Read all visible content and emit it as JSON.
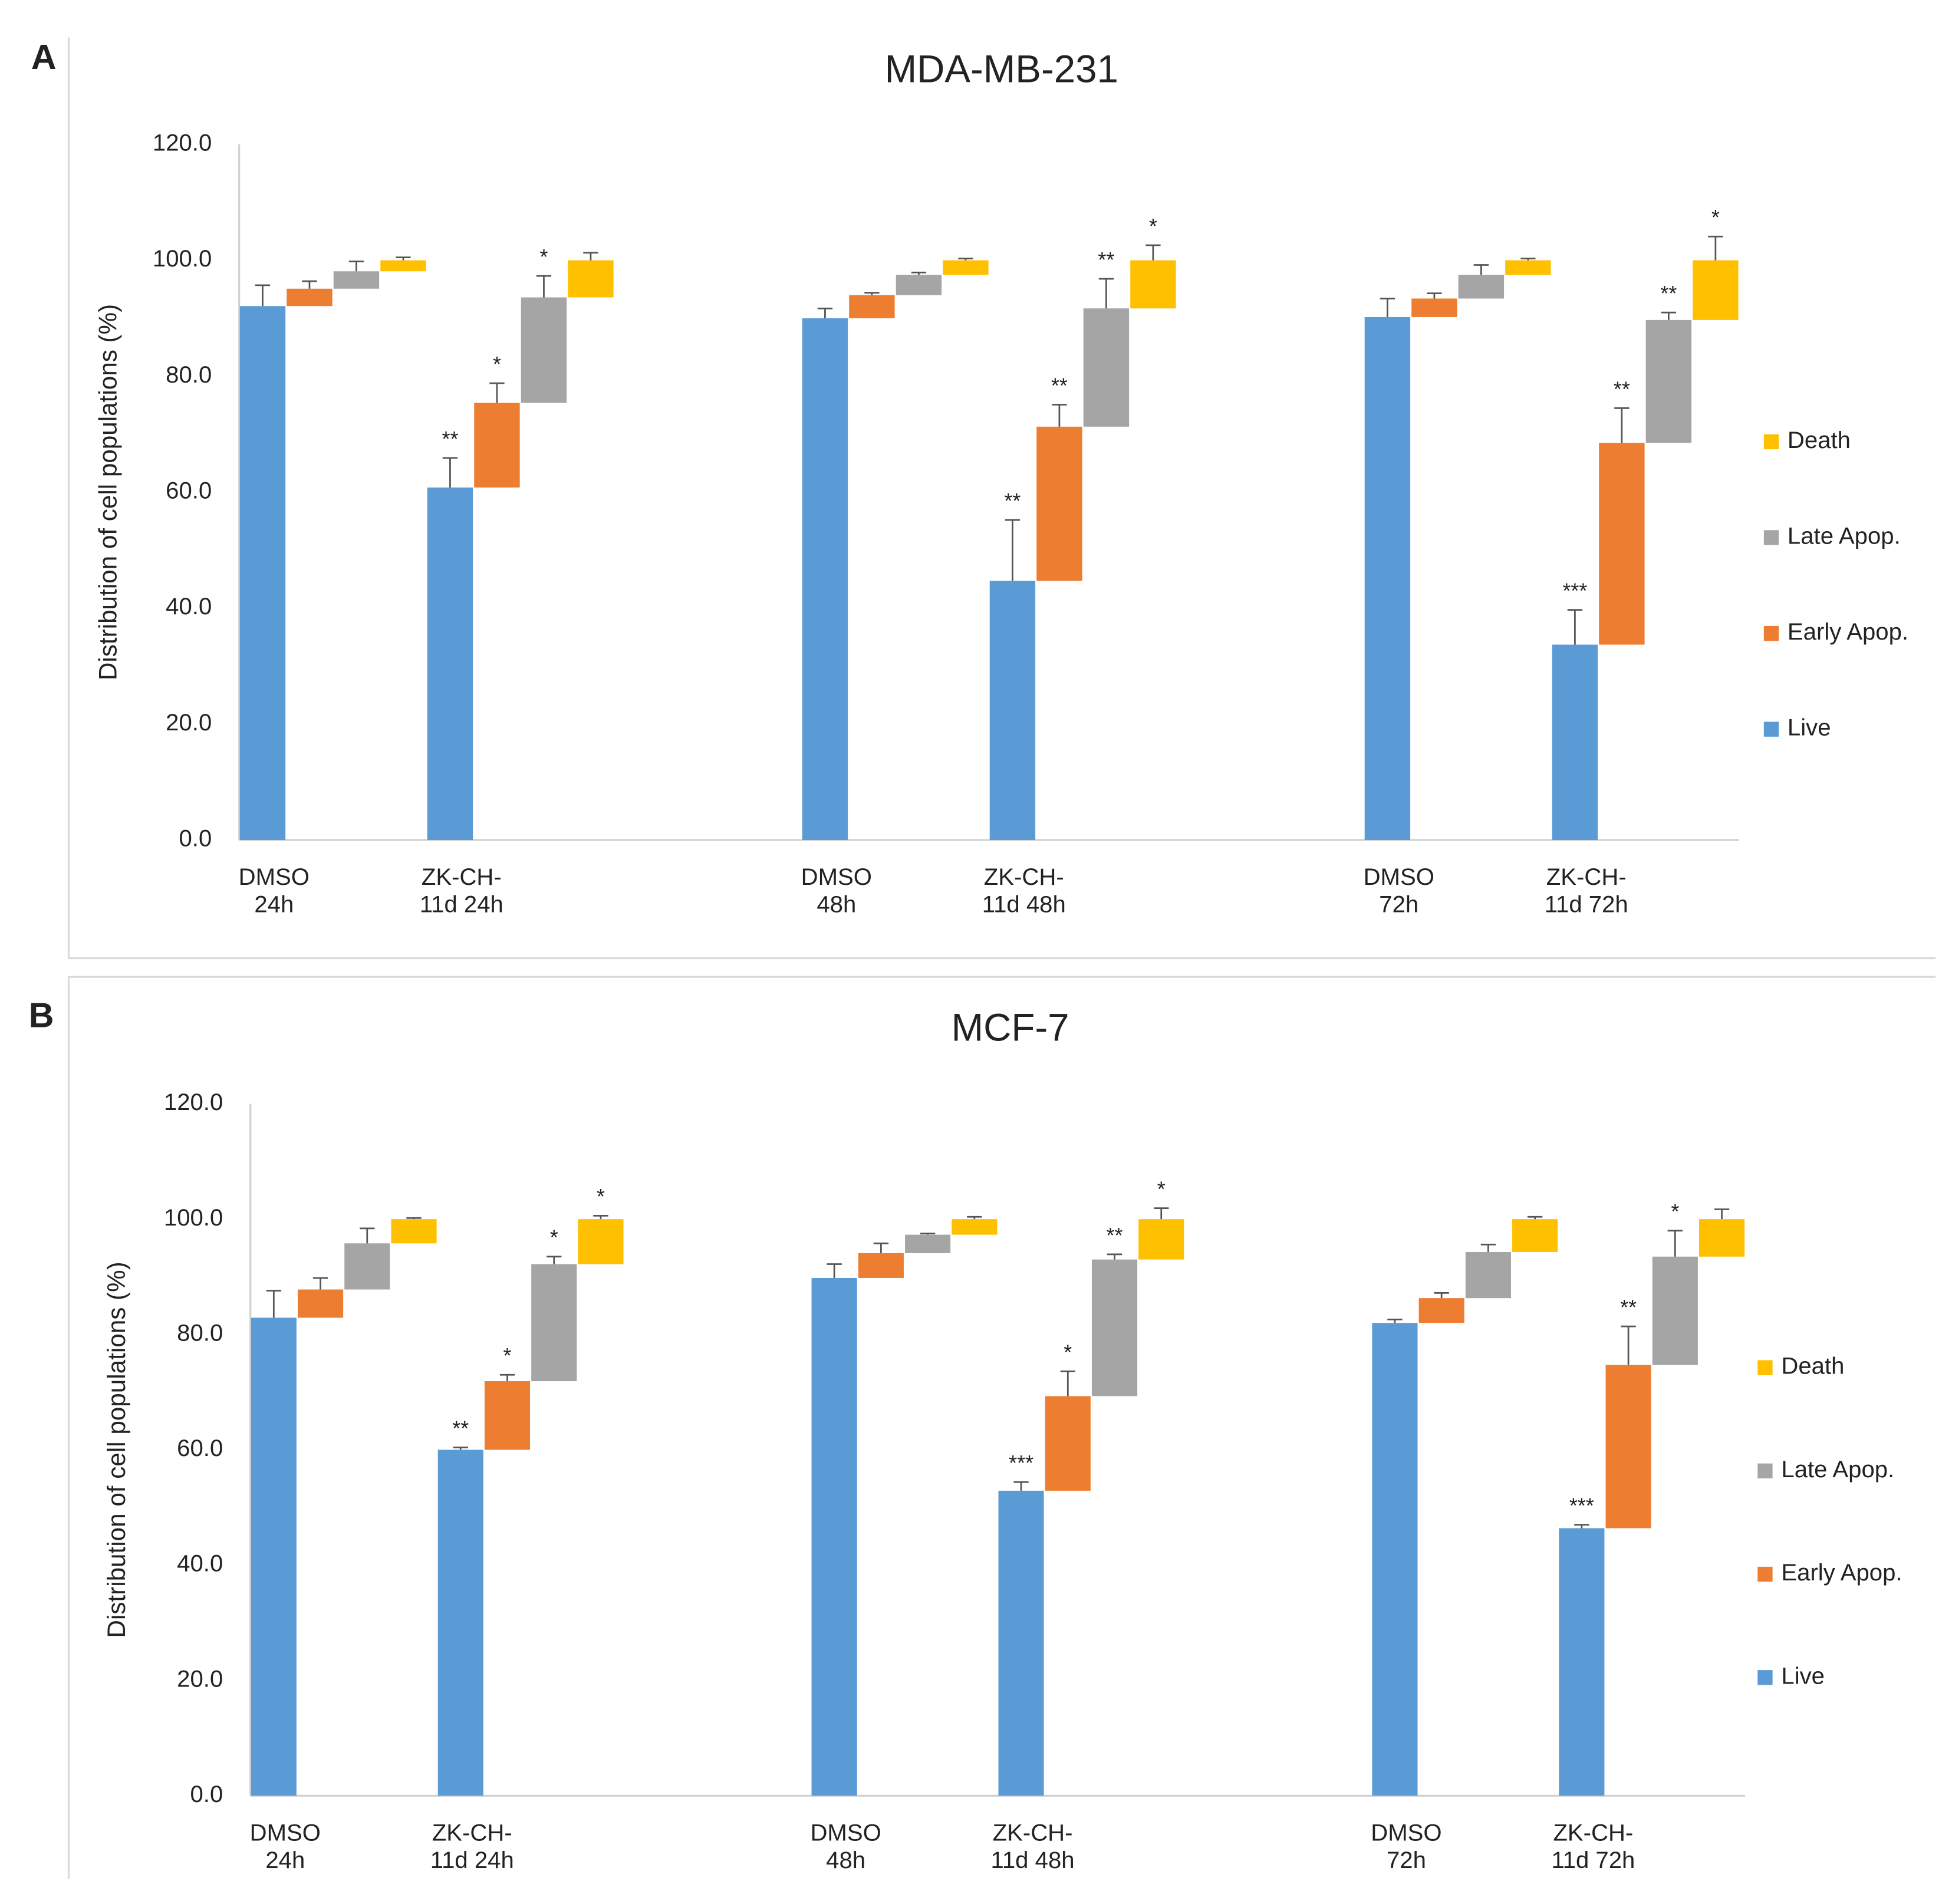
{
  "chart_data": [
    {
      "type": "floating-bar",
      "panel": "A",
      "title": "MDA-MB-231",
      "y_label": "Distribution of cell populations (%)",
      "categories": [
        [
          "DMSO",
          "24h"
        ],
        [
          "ZK-CH-",
          "11d 24h"
        ],
        null,
        [
          "DMSO",
          "48h"
        ],
        [
          "ZK-CH-",
          "11d 48h"
        ],
        null,
        [
          "DMSO",
          "72h"
        ],
        [
          "ZK-CH-",
          "11d 72h"
        ]
      ],
      "ylim": [
        0,
        120
      ],
      "yticks": [
        {
          "value": 0,
          "label": "0.0"
        },
        {
          "value": 20,
          "label": "20.0"
        },
        {
          "value": 40,
          "label": "40.0"
        },
        {
          "value": 60,
          "label": "60.0"
        },
        {
          "value": 80,
          "label": "80.0"
        },
        {
          "value": 100,
          "label": "100.0"
        },
        {
          "value": 120,
          "label": "120.0"
        }
      ],
      "grid": false,
      "legend": "right",
      "series": [
        {
          "name": "Live",
          "color": "#5b9bd5",
          "values": [
            92.1,
            60.8,
            null,
            90.0,
            44.7,
            null,
            90.2,
            33.7
          ],
          "errors": [
            3.6,
            5.1,
            null,
            1.7,
            10.5,
            null,
            3.2,
            6.0
          ],
          "significance": [
            null,
            "**",
            null,
            null,
            "**",
            null,
            null,
            "***"
          ]
        },
        {
          "name": "Early Apop.",
          "color": "#ed7d31",
          "values": [
            3.0,
            14.6,
            null,
            4.0,
            26.6,
            null,
            3.2,
            34.8
          ],
          "errors": [
            1.3,
            3.4,
            null,
            0.4,
            3.8,
            null,
            0.9,
            6.0
          ],
          "significance": [
            null,
            "*",
            null,
            null,
            "**",
            null,
            null,
            "**"
          ]
        },
        {
          "name": "Late Apop.",
          "color": "#a5a5a5",
          "values": [
            3.0,
            18.2,
            null,
            3.5,
            20.4,
            null,
            4.1,
            21.2
          ],
          "errors": [
            1.7,
            3.7,
            null,
            0.4,
            5.1,
            null,
            1.7,
            1.3
          ],
          "significance": [
            null,
            "*",
            null,
            null,
            "**",
            null,
            null,
            "**"
          ]
        },
        {
          "name": "Death",
          "color": "#ffc000",
          "values": [
            1.9,
            6.4,
            null,
            2.5,
            8.3,
            null,
            2.5,
            10.3
          ],
          "errors": [
            0.5,
            1.3,
            null,
            0.3,
            2.6,
            null,
            0.3,
            4.1
          ],
          "significance": [
            null,
            null,
            null,
            null,
            "*",
            null,
            null,
            "*"
          ]
        }
      ]
    },
    {
      "type": "floating-bar",
      "panel": "B",
      "title": "MCF-7",
      "y_label": "Distribution of cell populations (%)",
      "categories": [
        [
          "DMSO",
          "24h"
        ],
        [
          "ZK-CH-",
          "11d 24h"
        ],
        null,
        [
          "DMSO",
          "48h"
        ],
        [
          "ZK-CH-",
          "11d 48h"
        ],
        null,
        [
          "DMSO",
          "72h"
        ],
        [
          "ZK-CH-",
          "11d 72h"
        ]
      ],
      "ylim": [
        0,
        120
      ],
      "yticks": [
        {
          "value": 0,
          "label": "0.0"
        },
        {
          "value": 20,
          "label": "20.0"
        },
        {
          "value": 40,
          "label": "40.0"
        },
        {
          "value": 60,
          "label": "60.0"
        },
        {
          "value": 80,
          "label": "80.0"
        },
        {
          "value": 100,
          "label": "100.0"
        },
        {
          "value": 120,
          "label": "120.0"
        }
      ],
      "grid": false,
      "legend": "right",
      "series": [
        {
          "name": "Live",
          "color": "#5b9bd5",
          "values": [
            82.9,
            60.0,
            null,
            89.8,
            52.9,
            null,
            82.0,
            46.4
          ],
          "errors": [
            4.7,
            0.4,
            null,
            2.4,
            1.5,
            null,
            0.6,
            0.6
          ],
          "significance": [
            null,
            "**",
            null,
            null,
            "***",
            null,
            null,
            "***"
          ]
        },
        {
          "name": "Early Apop.",
          "color": "#ed7d31",
          "values": [
            4.9,
            11.9,
            null,
            4.3,
            16.4,
            null,
            4.3,
            28.3
          ],
          "errors": [
            2.0,
            1.1,
            null,
            1.7,
            4.3,
            null,
            0.9,
            6.7
          ],
          "significance": [
            null,
            "*",
            null,
            null,
            "*",
            null,
            null,
            "**"
          ]
        },
        {
          "name": "Late Apop.",
          "color": "#a5a5a5",
          "values": [
            8.0,
            20.3,
            null,
            3.2,
            23.7,
            null,
            8.0,
            18.8
          ],
          "errors": [
            2.6,
            1.3,
            null,
            0.2,
            0.9,
            null,
            1.3,
            4.5
          ],
          "significance": [
            null,
            "*",
            null,
            null,
            "**",
            null,
            null,
            "*"
          ]
        },
        {
          "name": "Death",
          "color": "#ffc000",
          "values": [
            4.2,
            7.8,
            null,
            2.7,
            7.0,
            null,
            5.7,
            6.5
          ],
          "errors": [
            0.2,
            0.6,
            null,
            0.4,
            1.9,
            null,
            0.4,
            1.7
          ],
          "significance": [
            null,
            "*",
            null,
            null,
            "*",
            null,
            null,
            null
          ]
        }
      ]
    }
  ]
}
